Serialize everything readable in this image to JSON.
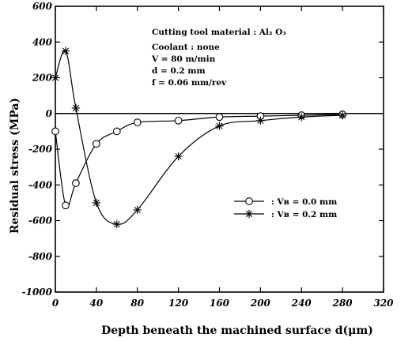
{
  "chart_data": {
    "type": "line",
    "title": "",
    "xlabel": "Depth beneath the machined surface d(μm)",
    "ylabel": "Residual stress (MPa)",
    "xlim": [
      0,
      320
    ],
    "ylim": [
      -1000,
      600
    ],
    "x_ticks": [
      0,
      40,
      80,
      120,
      160,
      200,
      240,
      280,
      320
    ],
    "y_ticks": [
      600,
      400,
      200,
      0,
      -200,
      -400,
      -600,
      -800,
      -1000
    ],
    "x_tick_labels": [
      "0",
      "40",
      "80",
      "120",
      "160",
      "200",
      "240",
      "280",
      "320"
    ],
    "y_tick_labels": [
      "600",
      "400",
      "200",
      "0",
      "-200",
      "-400",
      "-600",
      "-800",
      "-1000"
    ],
    "grid": false,
    "legend_position": "center-right",
    "annotations": [
      "Cutting tool material : Al₂ O₃",
      "Coolant : none",
      "V = 80 m/min",
      "d = 0.2 mm",
      "f = 0.06 mm/rev"
    ],
    "series": [
      {
        "name": ": Vʙ = 0.0 mm",
        "marker": "circle",
        "x": [
          0,
          10,
          20,
          40,
          60,
          80,
          120,
          160,
          200,
          240,
          280
        ],
        "values": [
          -100,
          -515,
          -390,
          -170,
          -100,
          -50,
          -40,
          -20,
          -15,
          -10,
          -5
        ]
      },
      {
        "name": ": Vʙ = 0.2 mm",
        "marker": "star",
        "x": [
          0,
          10,
          20,
          40,
          60,
          80,
          120,
          160,
          200,
          240,
          280
        ],
        "values": [
          200,
          350,
          30,
          -500,
          -620,
          -540,
          -240,
          -70,
          -40,
          -20,
          -10
        ]
      }
    ]
  }
}
